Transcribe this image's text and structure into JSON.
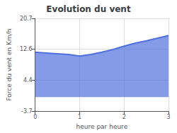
{
  "chart_data": {
    "type": "area",
    "title": "Evolution du vent",
    "xlabel": "heure par heure",
    "ylabel": "Force du vent en Km/h",
    "x": [
      0,
      0.25,
      0.5,
      0.75,
      1.0,
      1.25,
      1.5,
      1.75,
      2.0,
      2.25,
      2.5,
      2.75,
      3.0
    ],
    "values": [
      11.8,
      11.6,
      11.4,
      11.2,
      10.8,
      11.2,
      11.8,
      12.5,
      13.4,
      14.2,
      14.8,
      15.5,
      16.2
    ],
    "xlim": [
      0,
      3
    ],
    "ylim": [
      -3.7,
      20.7
    ],
    "xticks": [
      0,
      1,
      2,
      3
    ],
    "yticks": [
      -3.7,
      4.4,
      12.6,
      20.7
    ],
    "grid": true
  }
}
